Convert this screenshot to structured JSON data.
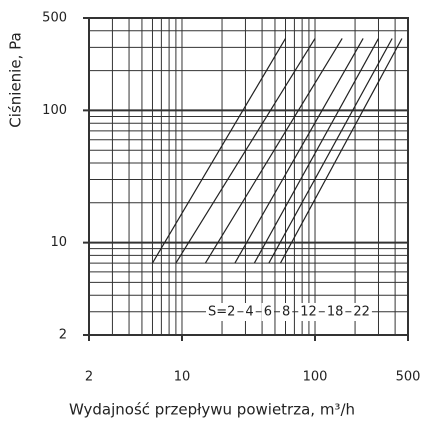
{
  "chart_data": {
    "type": "line",
    "x_label": "Wydajność przepływu powietrza, m³/h",
    "y_label": "Ciśnienie, Pa",
    "log_x": true,
    "log_y": true,
    "xlim": [
      2,
      500
    ],
    "ylim": [
      2,
      500
    ],
    "xticks": [
      2,
      10,
      100,
      500
    ],
    "yticks": [
      2,
      10,
      100,
      500
    ],
    "xgrid": [
      2,
      3,
      4,
      5,
      6,
      7,
      8,
      9,
      10,
      20,
      30,
      40,
      50,
      60,
      70,
      80,
      90,
      100,
      200,
      300,
      400,
      500
    ],
    "ygrid": [
      2,
      3,
      4,
      5,
      6,
      7,
      8,
      9,
      10,
      20,
      30,
      40,
      50,
      60,
      70,
      80,
      90,
      100,
      200,
      300,
      400,
      500
    ],
    "color": "#222222",
    "series": [
      {
        "name": "S=2",
        "x": [
          6,
          60
        ],
        "values": [
          7,
          350
        ]
      },
      {
        "name": "4",
        "x": [
          9,
          100
        ],
        "values": [
          7,
          350
        ]
      },
      {
        "name": "6",
        "x": [
          15,
          160
        ],
        "values": [
          7,
          350
        ]
      },
      {
        "name": "8",
        "x": [
          25,
          230
        ],
        "values": [
          7,
          350
        ]
      },
      {
        "name": "12",
        "x": [
          35,
          300
        ],
        "values": [
          7,
          350
        ]
      },
      {
        "name": "18",
        "x": [
          45,
          380
        ],
        "values": [
          7,
          350
        ]
      },
      {
        "name": "22",
        "x": [
          55,
          450
        ],
        "values": [
          7,
          350
        ]
      }
    ]
  }
}
